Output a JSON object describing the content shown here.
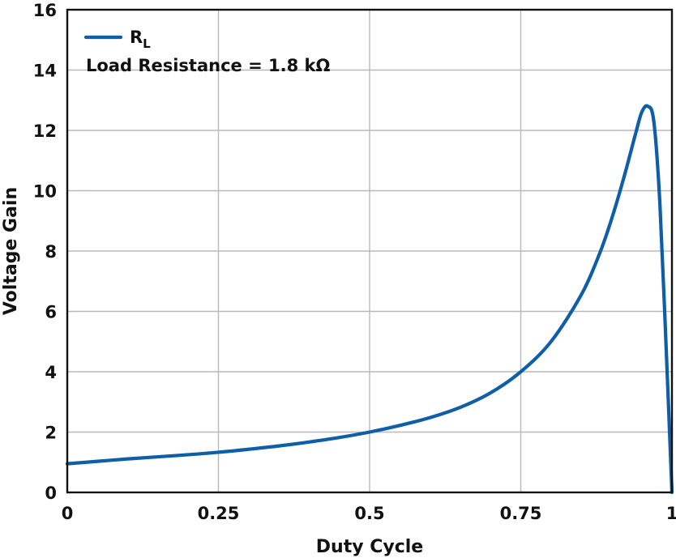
{
  "chart_data": {
    "type": "line",
    "title": "",
    "xlabel": "Duty Cycle",
    "ylabel": "Voltage Gain",
    "xlim": [
      0,
      1
    ],
    "ylim": [
      0,
      16
    ],
    "x_ticks": [
      0,
      0.25,
      0.5,
      0.75,
      1
    ],
    "x_tick_labels": [
      "0",
      "0.25",
      "0.5",
      "0.75",
      "1"
    ],
    "y_ticks": [
      0,
      2,
      4,
      6,
      8,
      10,
      12,
      14,
      16
    ],
    "y_tick_labels": [
      "0",
      "2",
      "4",
      "6",
      "8",
      "10",
      "12",
      "14",
      "16"
    ],
    "grid": true,
    "legend_position": "top-left",
    "legend": {
      "entries": [
        {
          "label_main": "R",
          "label_sub": "L",
          "color": "#0f5ea8"
        }
      ],
      "annotation": "Load Resistance = 1.8 kΩ"
    },
    "series": [
      {
        "color": "#0f5ea8",
        "x": [
          0,
          0.05,
          0.1,
          0.15,
          0.2,
          0.25,
          0.3,
          0.35,
          0.4,
          0.45,
          0.5,
          0.55,
          0.6,
          0.65,
          0.7,
          0.75,
          0.8,
          0.85,
          0.88,
          0.9,
          0.92,
          0.94,
          0.95,
          0.96,
          0.97,
          0.98,
          0.99,
          1.0
        ],
        "y": [
          0.95,
          1.03,
          1.11,
          1.18,
          1.25,
          1.33,
          1.43,
          1.54,
          1.67,
          1.82,
          2.0,
          2.22,
          2.48,
          2.82,
          3.3,
          4.0,
          5.0,
          6.55,
          7.9,
          9.05,
          10.4,
          11.9,
          12.6,
          12.8,
          12.3,
          9.6,
          5.0,
          0.0
        ]
      }
    ]
  }
}
